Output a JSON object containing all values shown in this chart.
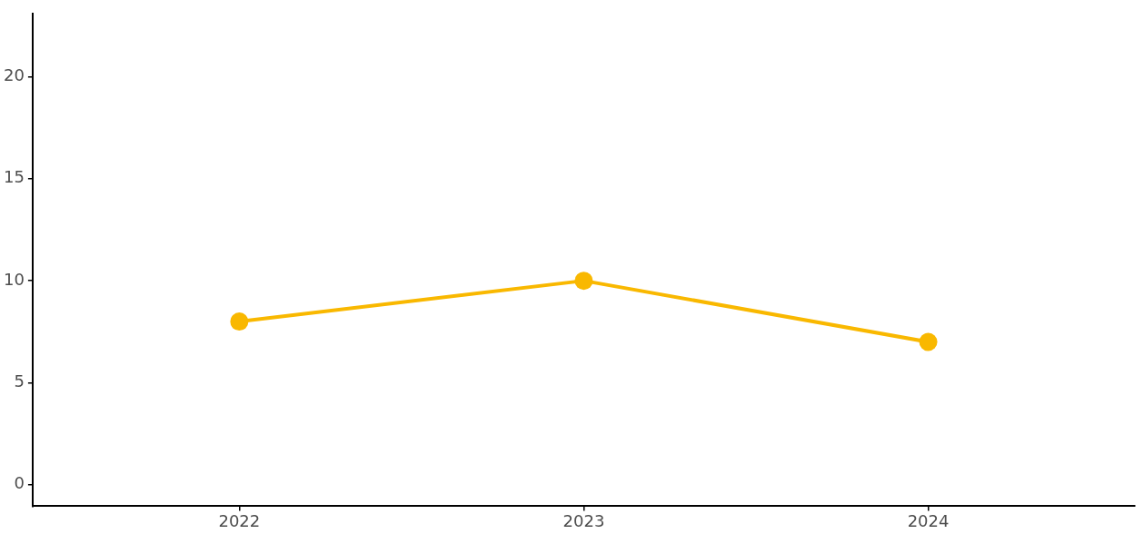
{
  "chart_data": {
    "type": "line",
    "x": [
      2022,
      2023,
      2024
    ],
    "series": [
      {
        "color": "#f9b800",
        "values": [
          8,
          10,
          7
        ]
      }
    ],
    "xlim": [
      2021.4,
      2024.6
    ],
    "xticks": [
      2022,
      2023,
      2024
    ],
    "ylim": [
      -1.05,
      23.1
    ],
    "yticks": [
      0,
      5,
      10,
      15,
      20
    ],
    "grid": false,
    "legend": false,
    "marker": "circle",
    "line_style": "solid"
  }
}
